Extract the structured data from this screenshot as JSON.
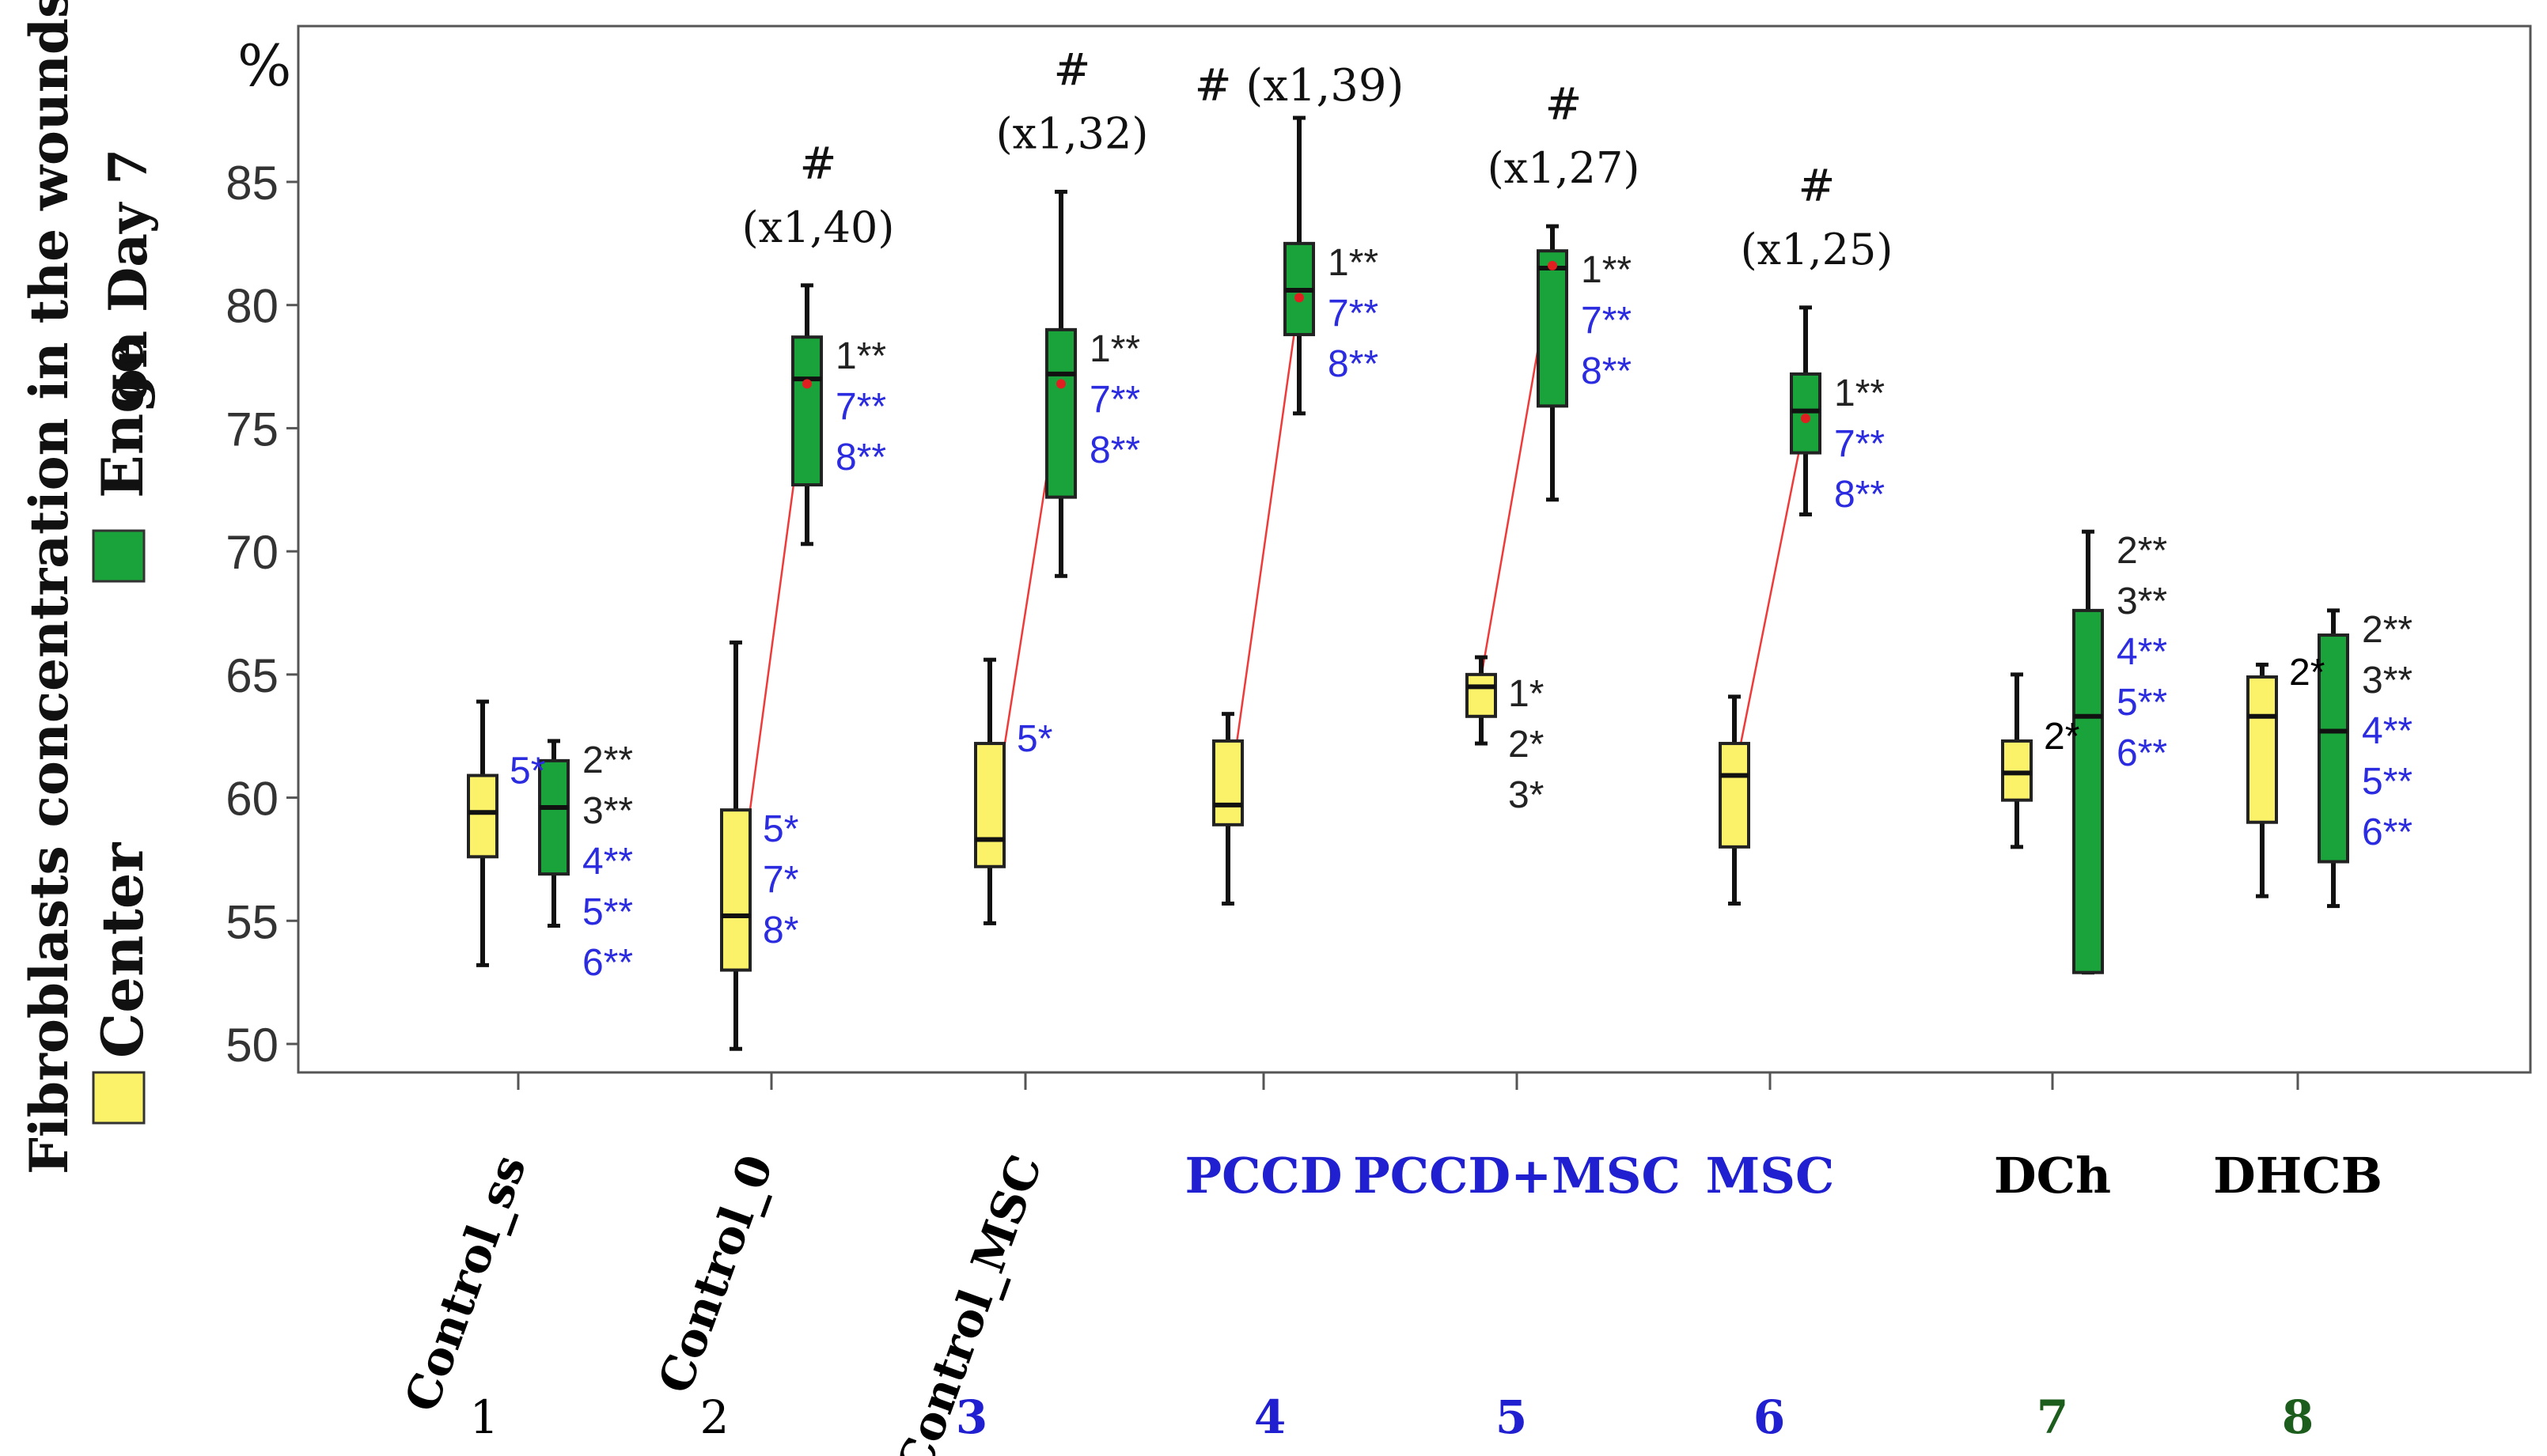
{
  "chart_data": {
    "type": "boxplot",
    "unit_label": "%",
    "ylabel": {
      "line1": "Fibroblasts concentration in the wounds",
      "line2": "on Day 7"
    },
    "legend": [
      {
        "name": "Enge",
        "color": "#1aa33a"
      },
      {
        "name": "Center",
        "color": "#fbf26a"
      }
    ],
    "ylim": [
      49,
      91
    ],
    "yticks": [
      50,
      55,
      60,
      65,
      70,
      75,
      80,
      85
    ],
    "groups": [
      {
        "name": "Control_ss",
        "number": "1",
        "name_color": "#000000",
        "number_color": "#000000",
        "rotated": true,
        "center": {
          "min": 53.2,
          "q1": 57.6,
          "median": 59.4,
          "q3": 60.9,
          "max": 63.9,
          "labels": [
            {
              "text": "5*",
              "color": "#2b2be0"
            }
          ]
        },
        "edge": {
          "min": 54.8,
          "q1": 56.9,
          "median": 59.6,
          "q3": 61.5,
          "max": 62.3,
          "labels": [
            {
              "text": "2**",
              "color": "#222222"
            },
            {
              "text": "3**",
              "color": "#222222"
            },
            {
              "text": "4**",
              "color": "#2b2be0"
            },
            {
              "text": "5**",
              "color": "#2b2be0"
            },
            {
              "text": "6**",
              "color": "#2b2be0"
            }
          ]
        }
      },
      {
        "name": "Control_0",
        "number": "2",
        "name_color": "#000000",
        "number_color": "#000000",
        "rotated": true,
        "center": {
          "min": 49.8,
          "q1": 53.0,
          "median": 55.2,
          "q3": 59.5,
          "max": 66.3,
          "mean": 55.2,
          "labels": [
            {
              "text": "5*",
              "color": "#2b2be0"
            },
            {
              "text": "7*",
              "color": "#2b2be0"
            },
            {
              "text": "8*",
              "color": "#2b2be0"
            }
          ]
        },
        "edge": {
          "min": 70.3,
          "q1": 72.7,
          "median": 77.0,
          "q3": 78.7,
          "max": 80.8,
          "mean": 76.8,
          "labels": [
            {
              "text": "1**",
              "color": "#222222"
            },
            {
              "text": "7**",
              "color": "#2b2be0"
            },
            {
              "text": "8**",
              "color": "#2b2be0"
            }
          ]
        },
        "hash_label": "#",
        "ratio_label": "(x1,40)"
      },
      {
        "name": "Control_MSC",
        "number": "3",
        "name_color": "#000000",
        "number_color": "#2020d0",
        "rotated": true,
        "center": {
          "min": 54.9,
          "q1": 57.2,
          "median": 58.3,
          "q3": 62.2,
          "max": 65.6,
          "mean": 58.3,
          "labels": [
            {
              "text": "5*",
              "color": "#2b2be0"
            }
          ]
        },
        "edge": {
          "min": 69.0,
          "q1": 72.2,
          "median": 77.2,
          "q3": 79.0,
          "max": 84.6,
          "mean": 76.8,
          "labels": [
            {
              "text": "1**",
              "color": "#222222"
            },
            {
              "text": "7**",
              "color": "#2b2be0"
            },
            {
              "text": "8**",
              "color": "#2b2be0"
            }
          ]
        },
        "hash_label": "#",
        "ratio_label": "(x1,32)"
      },
      {
        "name": "PCCD",
        "number": "4",
        "name_color": "#2020d0",
        "number_color": "#2020d0",
        "rotated": false,
        "center": {
          "min": 55.7,
          "q1": 58.9,
          "median": 59.7,
          "q3": 62.3,
          "max": 63.4,
          "mean": 59.7,
          "labels": []
        },
        "edge": {
          "min": 75.6,
          "q1": 78.8,
          "median": 80.6,
          "q3": 82.5,
          "max": 87.6,
          "mean": 80.3,
          "labels": [
            {
              "text": "1**",
              "color": "#222222"
            },
            {
              "text": "7**",
              "color": "#2b2be0"
            },
            {
              "text": "8**",
              "color": "#2b2be0"
            }
          ]
        },
        "hash_label": "#",
        "ratio_label": "(x1,39)",
        "header_inline": true
      },
      {
        "name": "PCCD+MSC",
        "number": "5",
        "name_color": "#2020d0",
        "number_color": "#2020d0",
        "rotated": false,
        "center": {
          "min": 62.2,
          "q1": 63.3,
          "median": 64.5,
          "q3": 65.0,
          "max": 65.7,
          "mean": 64.9,
          "labels": [
            {
              "text": "1*",
              "color": "#222222"
            },
            {
              "text": "2*",
              "color": "#222222"
            },
            {
              "text": "3*",
              "color": "#222222"
            }
          ]
        },
        "edge": {
          "min": 72.1,
          "q1": 75.9,
          "median": 81.5,
          "q3": 82.2,
          "max": 83.2,
          "mean": 81.6,
          "labels": [
            {
              "text": "1**",
              "color": "#222222"
            },
            {
              "text": "7**",
              "color": "#2b2be0"
            },
            {
              "text": "8**",
              "color": "#2b2be0"
            }
          ]
        },
        "hash_label": "#",
        "ratio_label": "(x1,27)"
      },
      {
        "name": "MSC",
        "number": "6",
        "name_color": "#2020d0",
        "number_color": "#2020d0",
        "rotated": false,
        "center": {
          "min": 55.7,
          "q1": 58.0,
          "median": 60.9,
          "q3": 62.2,
          "max": 64.1,
          "mean": 60.9,
          "labels": []
        },
        "edge": {
          "min": 71.5,
          "q1": 74.0,
          "median": 75.7,
          "q3": 77.2,
          "max": 79.9,
          "mean": 75.4,
          "labels": [
            {
              "text": "1**",
              "color": "#222222"
            },
            {
              "text": "7**",
              "color": "#2b2be0"
            },
            {
              "text": "8**",
              "color": "#2b2be0"
            }
          ]
        },
        "hash_label": "#",
        "ratio_label": "(x1,25)"
      },
      {
        "name": "DCh",
        "number": "7",
        "name_color": "#000000",
        "number_color": "#1c5c1c",
        "rotated": false,
        "center": {
          "min": 58.0,
          "q1": 59.9,
          "median": 61.0,
          "q3": 62.3,
          "max": 65.0,
          "labels": [
            {
              "text": "2*",
              "color": "#000000"
            }
          ]
        },
        "edge": {
          "min": 52.9,
          "q1": 52.9,
          "median": 63.3,
          "q3": 67.6,
          "max": 70.8,
          "labels": [
            {
              "text": "2**",
              "color": "#222222"
            },
            {
              "text": "3**",
              "color": "#222222"
            },
            {
              "text": "4**",
              "color": "#2b2be0"
            },
            {
              "text": "5**",
              "color": "#2b2be0"
            },
            {
              "text": "6**",
              "color": "#2b2be0"
            }
          ]
        }
      },
      {
        "name": "DHCB",
        "number": "8",
        "name_color": "#000000",
        "number_color": "#1c5c1c",
        "rotated": false,
        "center": {
          "min": 56.0,
          "q1": 59.0,
          "median": 63.3,
          "q3": 64.9,
          "max": 65.4,
          "labels": [
            {
              "text": "2*",
              "color": "#000000"
            }
          ]
        },
        "edge": {
          "min": 55.6,
          "q1": 57.4,
          "median": 62.7,
          "q3": 66.6,
          "max": 67.6,
          "labels": [
            {
              "text": "2**",
              "color": "#222222"
            },
            {
              "text": "3**",
              "color": "#222222"
            },
            {
              "text": "4**",
              "color": "#2b2be0"
            },
            {
              "text": "5**",
              "color": "#2b2be0"
            },
            {
              "text": "6**",
              "color": "#2b2be0"
            }
          ]
        }
      }
    ]
  },
  "colors": {
    "center_fill": "#fbf26a",
    "edge_fill": "#1aa33a",
    "connector": "#f03a3a",
    "mean_marker": "#e02020",
    "tick_text": "#333333"
  }
}
